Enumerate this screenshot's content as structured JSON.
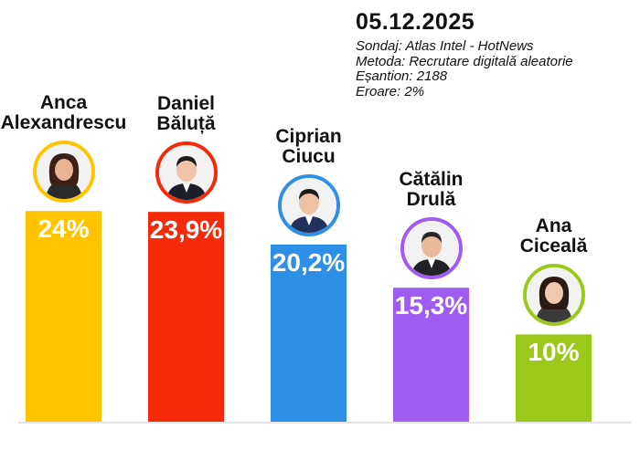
{
  "header": {
    "date": "05.12.2025",
    "lines": [
      "Sondaj: Atlas Intel - HotNews",
      "Metoda: Recrutare digitală aleatorie",
      "Eșantion: 2188",
      "Eroare: 2%"
    ]
  },
  "chart_data": {
    "type": "bar",
    "title": "",
    "xlabel": "",
    "ylabel": "",
    "ylim": [
      0,
      26
    ],
    "grid": false,
    "categories": [
      "Anca Alexandrescu",
      "Daniel Băluță",
      "Ciprian Ciucu",
      "Cătălin Drulă",
      "Ana Ciceală"
    ],
    "name_lines": [
      [
        "Anca",
        "Alexandrescu"
      ],
      [
        "Daniel",
        "Băluță"
      ],
      [
        "Ciprian",
        "Ciucu"
      ],
      [
        "Cătălin",
        "Drulă"
      ],
      [
        "Ana",
        "Ciceală"
      ]
    ],
    "values": [
      24,
      23.9,
      20.2,
      15.3,
      10
    ],
    "value_labels": [
      "24%",
      "23,9%",
      "20,2%",
      "15,3%",
      "10%"
    ],
    "colors": [
      "#FFC400",
      "#F42A0A",
      "#2E8FE6",
      "#A05CF0",
      "#9CC81A"
    ],
    "avatar_icons": [
      "portrait-woman-icon",
      "portrait-man-icon",
      "portrait-man-icon",
      "portrait-man-icon",
      "portrait-woman-icon"
    ]
  }
}
